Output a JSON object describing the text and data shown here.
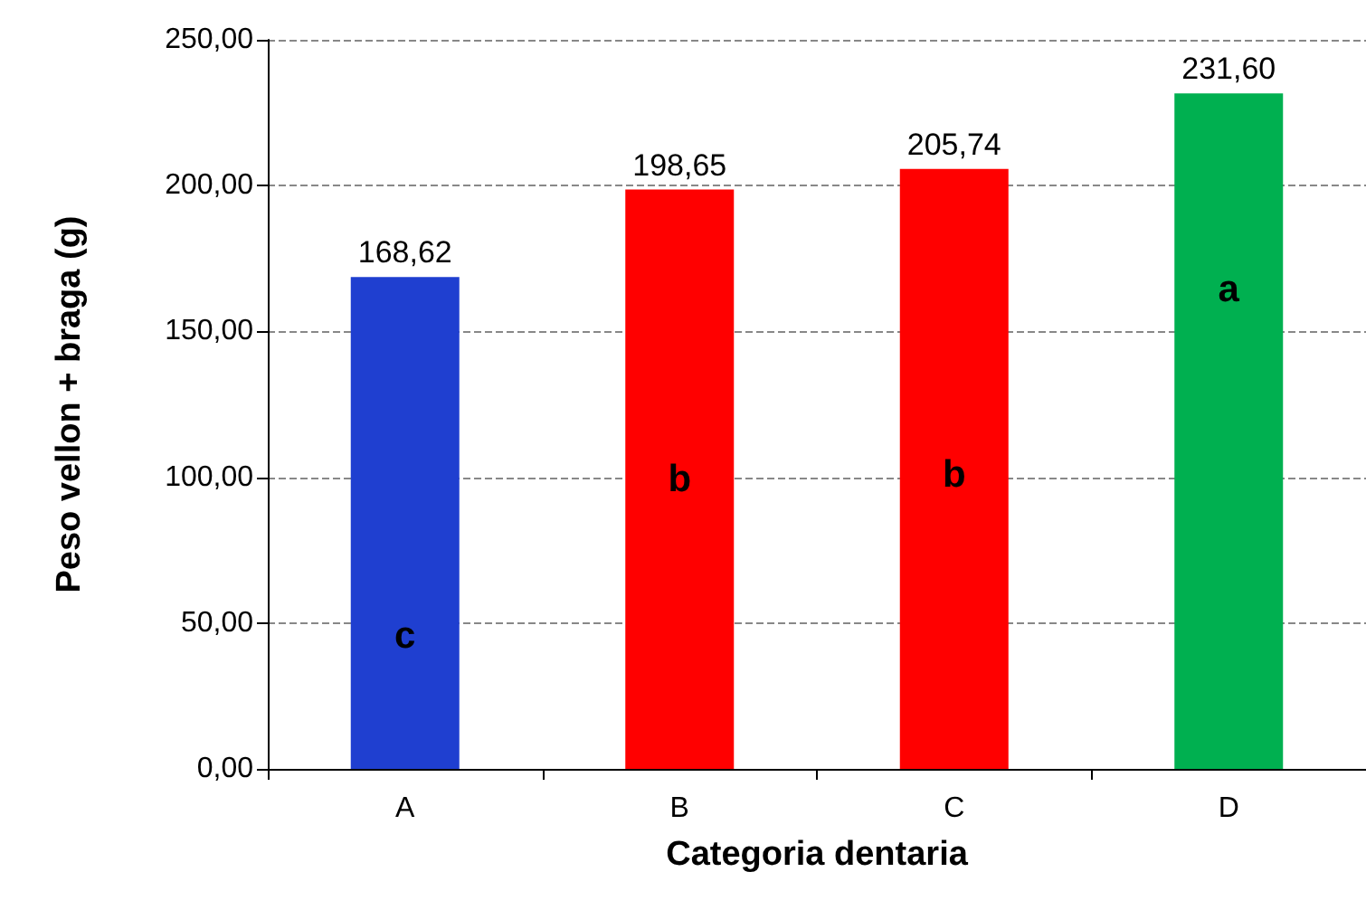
{
  "chart_data": {
    "type": "bar",
    "xlabel": "Categoria dentaria",
    "ylabel": "Peso vellon + braga (g)",
    "categories": [
      "A",
      "B",
      "C",
      "D"
    ],
    "values": [
      168.62,
      198.65,
      205.74,
      231.6
    ],
    "colors": [
      "#1f3fd0",
      "#ff0000",
      "#ff0000",
      "#00b050"
    ],
    "value_labels": [
      "168,62",
      "198,65",
      "205,74",
      "231,60"
    ],
    "ylim": [
      0,
      250
    ],
    "yticks": [
      {
        "value": 0,
        "label": "0,00"
      },
      {
        "value": 50,
        "label": "50,00"
      },
      {
        "value": 100,
        "label": "100,00"
      },
      {
        "value": 150,
        "label": "150,00"
      },
      {
        "value": 200,
        "label": "200,00"
      },
      {
        "value": 250,
        "label": "250,00"
      }
    ],
    "grid": "y",
    "annotations": [
      "c",
      "b",
      "b",
      "a"
    ]
  }
}
